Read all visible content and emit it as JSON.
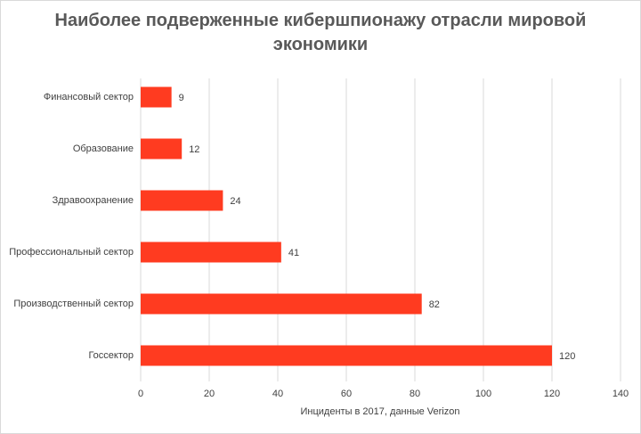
{
  "chart_data": {
    "type": "hbar",
    "title": "Наиболее подверженные кибершпионажу отрасли мировой экономики",
    "x_label": "Инциденты в 2017, данные Verizon",
    "categories": [
      "Финансовый сектор",
      "Образование",
      "Здравоохранение",
      "Профессиональный сектор",
      "Производственный сектор",
      "Госсектор"
    ],
    "values": [
      9,
      12,
      24,
      41,
      82,
      120
    ],
    "color": "#ff3b20",
    "xlim": [
      0,
      140
    ],
    "xticks": [
      0,
      20,
      40,
      60,
      80,
      100,
      120,
      140
    ],
    "grid": true
  }
}
